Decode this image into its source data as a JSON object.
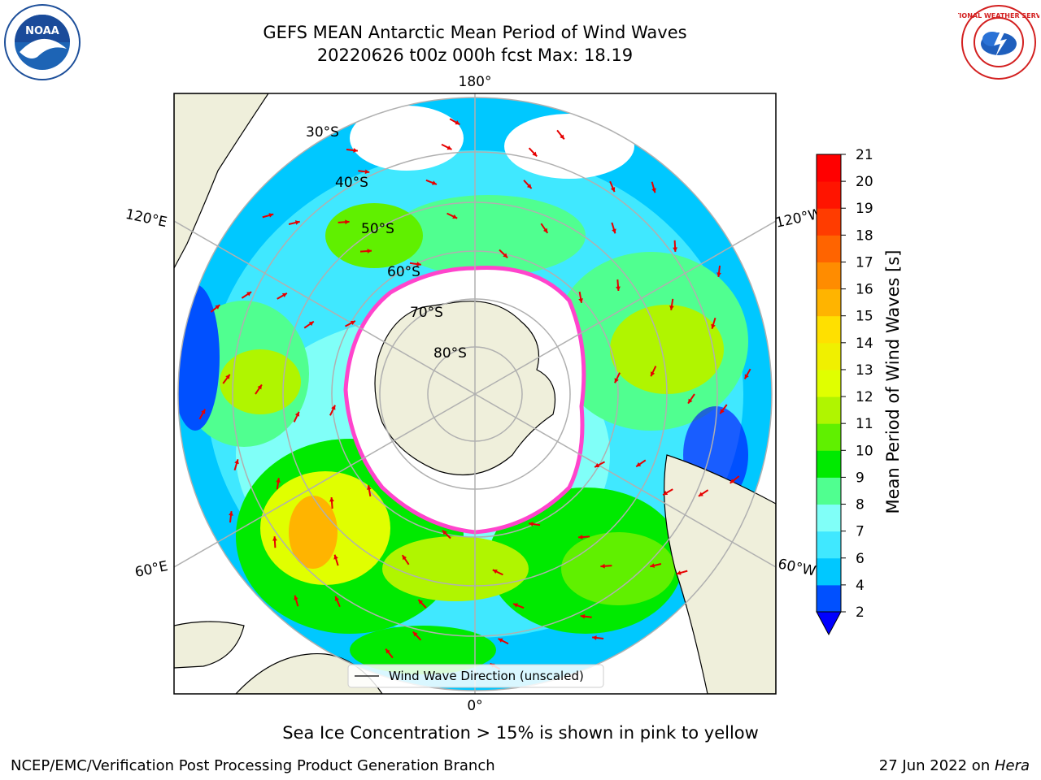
{
  "header": {
    "title_line1": "GEFS MEAN Antarctic Mean Period of Wind Waves",
    "title_line2": "20220626 t00z 000h fcst   Max: 18.19"
  },
  "logos": {
    "left": {
      "icon": "noaa-logo-icon",
      "text": "NOAA"
    },
    "right": {
      "icon": "national-weather-service-logo-icon",
      "text": "NATIONAL WEATHER SERVICE"
    }
  },
  "map": {
    "projection": "south polar stereographic",
    "latitude_labels": [
      "30°S",
      "40°S",
      "50°S",
      "60°S",
      "70°S",
      "80°S"
    ],
    "longitude_labels": {
      "top": "180°",
      "bottom": "0°",
      "upper_left": "120°E",
      "lower_left": "60°E",
      "upper_right": "120°W",
      "lower_right": "60°W"
    },
    "legend_label": "Wind Wave Direction (unscaled)"
  },
  "colorbar": {
    "label": "Mean Period of Wind Waves [s]",
    "ticks": [
      "2",
      "4",
      "6",
      "7",
      "8",
      "9",
      "10",
      "11",
      "12",
      "13",
      "14",
      "15",
      "16",
      "17",
      "18",
      "19",
      "20",
      "21"
    ],
    "colors": [
      "#0050ff",
      "#00c8ff",
      "#40e8ff",
      "#80fff8",
      "#50ff90",
      "#00ea00",
      "#60f000",
      "#b0f500",
      "#e0ff00",
      "#f0f000",
      "#ffe000",
      "#ffb400",
      "#ff8c00",
      "#ff6400",
      "#ff3c00",
      "#ff1400",
      "#ff0000"
    ],
    "extend_min_color": "#0000ff"
  },
  "colors": {
    "land": "#efefdb",
    "grid": "#b0b0b0",
    "ice_edge": "#ff44cc",
    "arrow": "#e60000"
  },
  "footer": {
    "caption": "Sea Ice Concentration > 15% is shown in pink to yellow",
    "left": "NCEP/EMC/Verification Post Processing Product Generation Branch",
    "right_date": "27 Jun 2022 on ",
    "right_machine": "Hera"
  }
}
